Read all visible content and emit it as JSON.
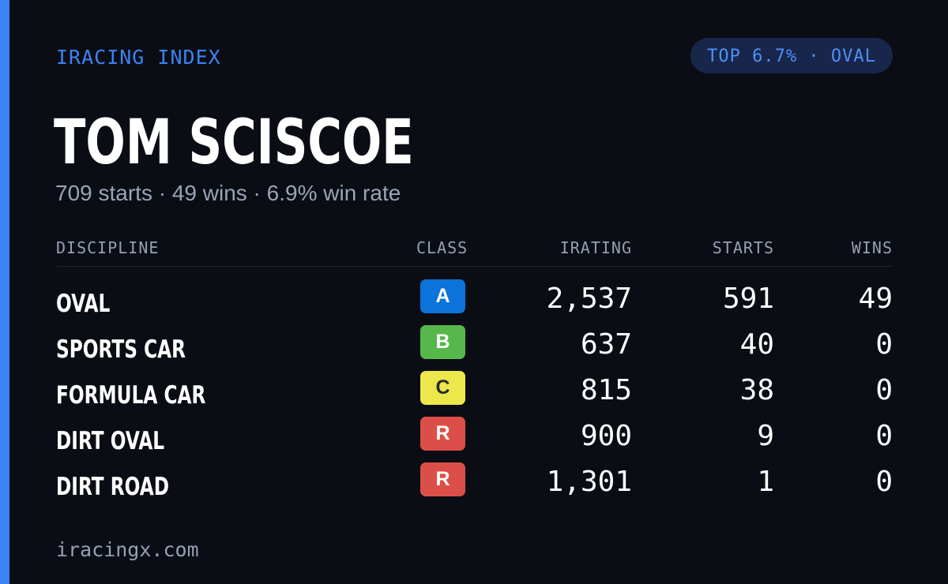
{
  "brand": "IRACING INDEX",
  "rank_badge": "TOP 6.7% · OVAL",
  "driver": {
    "name": "TOM SCISCOE",
    "summary": "709 starts · 49 wins · 6.9% win rate"
  },
  "table": {
    "headers": {
      "discipline": "DISCIPLINE",
      "class": "CLASS",
      "irating": "IRATING",
      "starts": "STARTS",
      "wins": "WINS"
    },
    "rows": [
      {
        "discipline": "OVAL",
        "class": "A",
        "class_color": "#0b73d9",
        "class_text_color": "#ffffff",
        "irating": "2,537",
        "starts": "591",
        "wins": "49"
      },
      {
        "discipline": "SPORTS CAR",
        "class": "B",
        "class_color": "#56b84a",
        "class_text_color": "#ffffff",
        "irating": "637",
        "starts": "40",
        "wins": "0"
      },
      {
        "discipline": "FORMULA CAR",
        "class": "C",
        "class_color": "#ece74a",
        "class_text_color": "#2a2a2a",
        "irating": "815",
        "starts": "38",
        "wins": "0"
      },
      {
        "discipline": "DIRT OVAL",
        "class": "R",
        "class_color": "#dc4f48",
        "class_text_color": "#ffffff",
        "irating": "900",
        "starts": "9",
        "wins": "0"
      },
      {
        "discipline": "DIRT ROAD",
        "class": "R",
        "class_color": "#dc4f48",
        "class_text_color": "#ffffff",
        "irating": "1,301",
        "starts": "1",
        "wins": "0"
      }
    ]
  },
  "footer": {
    "site": "iracingx.com"
  },
  "colors": {
    "accent": "#3b82f6",
    "background": "#0a0d14",
    "badge_background": "#17264a",
    "muted_text": "#97a0b2"
  }
}
